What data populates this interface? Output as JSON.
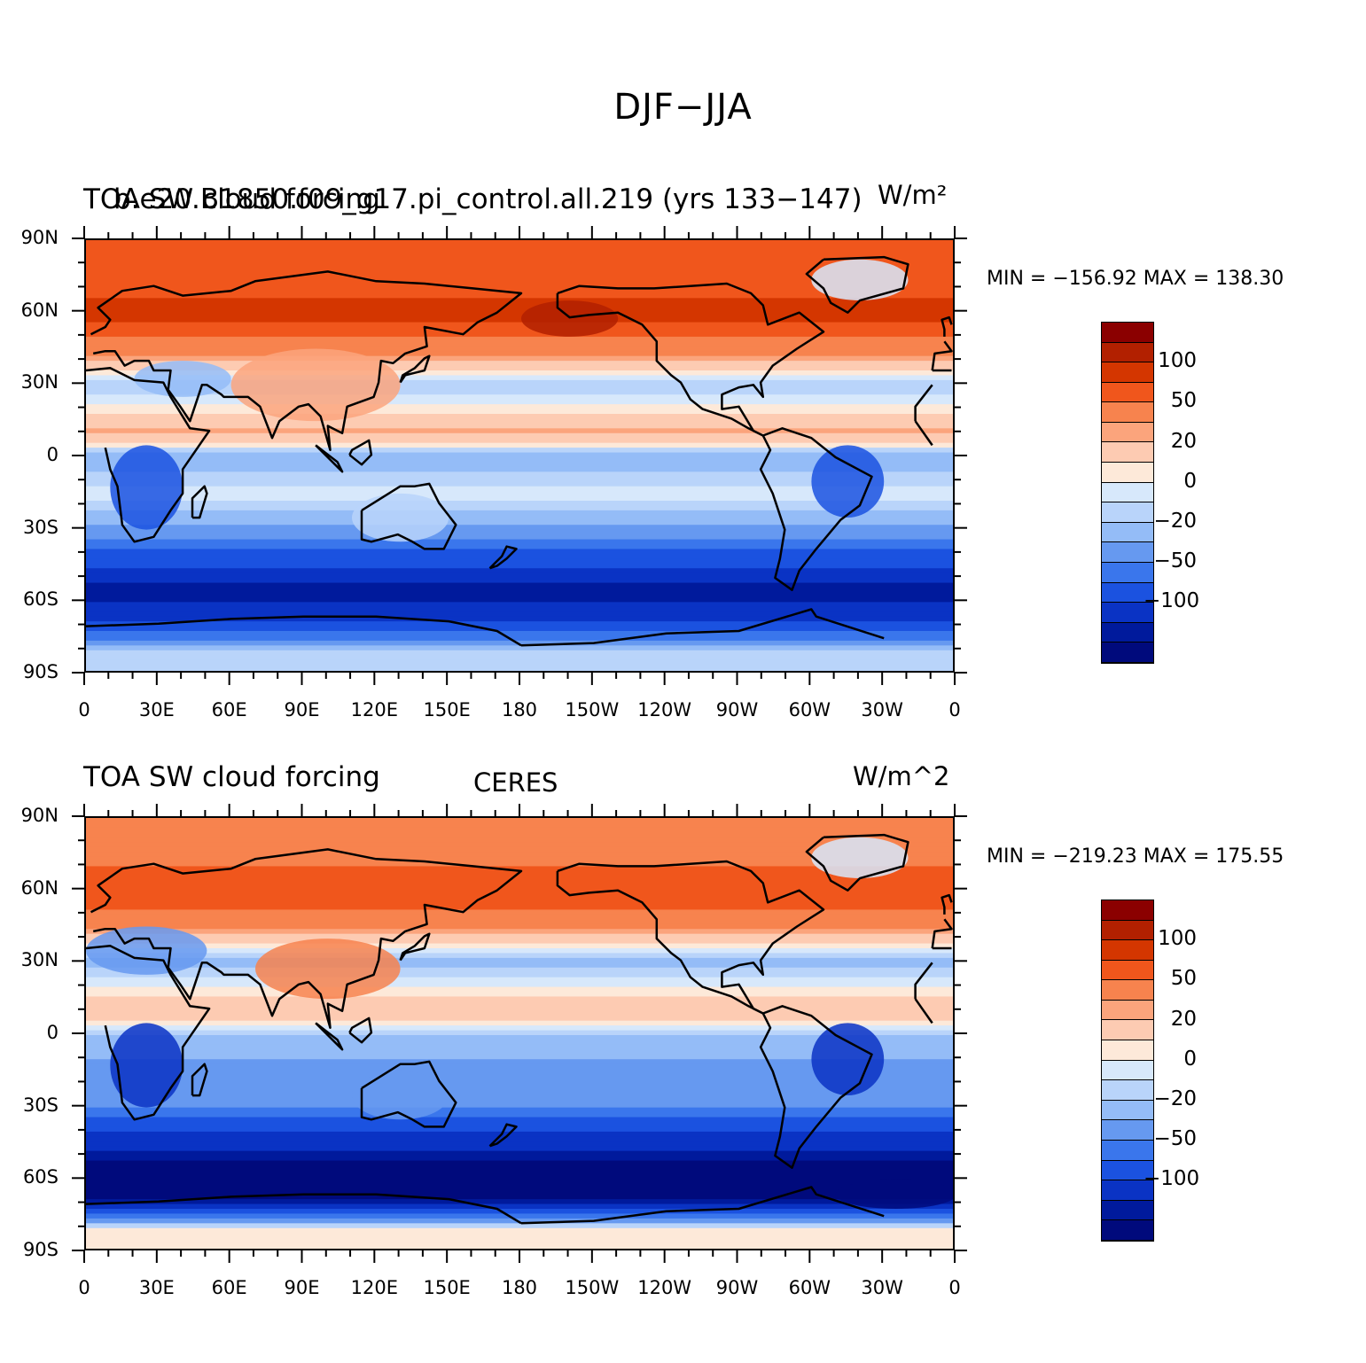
{
  "figure": {
    "title": "DJF−JJA"
  },
  "panels": [
    {
      "id": "model",
      "title_left": "TOA SW cloud forcing",
      "title_left_overlap": "b.e20.B1850.f09_g17.pi_control.all.219 (yrs 133−147)",
      "title_center": "",
      "units": "W/m²",
      "stats": "MIN = −156.92 MAX = 138.30"
    },
    {
      "id": "obs",
      "title_left": "TOA SW cloud forcing",
      "title_center": "CERES",
      "units": "W/m^2",
      "stats": "MIN = −219.23 MAX = 175.55"
    }
  ],
  "axes": {
    "lat_labels": [
      "90N",
      "60N",
      "30N",
      "0",
      "30S",
      "60S",
      "90S"
    ],
    "lon_labels": [
      "0",
      "30E",
      "60E",
      "90E",
      "120E",
      "150E",
      "180",
      "150W",
      "120W",
      "90W",
      "60W",
      "30W",
      "0"
    ]
  },
  "colorbar": {
    "colors": [
      "#8b0000",
      "#b22000",
      "#d43600",
      "#f0561c",
      "#f7834e",
      "#fba47c",
      "#fdcbb2",
      "#fde9d9",
      "#d7e8fb",
      "#b9d4fa",
      "#94bcf7",
      "#6699f0",
      "#3a76ec",
      "#1b52e0",
      "#0a33c4",
      "#001a9c",
      "#000a7c"
    ],
    "labels": [
      "100",
      "50",
      "20",
      "0",
      "−20",
      "−50",
      "−100"
    ]
  },
  "chart_data": [
    {
      "type": "heatmap",
      "title": "TOA SW cloud forcing — b.e20.B1850.f09_g17.pi_control.all.219 (yrs 133−147), DJF−JJA",
      "units": "W/m²",
      "x_range": [
        0,
        360
      ],
      "y_range": [
        -90,
        90
      ],
      "min": -156.92,
      "max": 138.3,
      "bands": [
        {
          "lat": 75,
          "value": 80
        },
        {
          "lat": 60,
          "value": 110
        },
        {
          "lat": 45,
          "value": 60
        },
        {
          "lat": 30,
          "value": -10
        },
        {
          "lat": 10,
          "value": 40
        },
        {
          "lat": 0,
          "value": -20
        },
        {
          "lat": -15,
          "value": 5
        },
        {
          "lat": -30,
          "value": -25
        },
        {
          "lat": -45,
          "value": -70
        },
        {
          "lat": -55,
          "value": -110
        },
        {
          "lat": -65,
          "value": -90
        },
        {
          "lat": -80,
          "value": -10
        }
      ]
    },
    {
      "type": "heatmap",
      "title": "TOA SW cloud forcing — CERES, DJF−JJA",
      "units": "W/m^2",
      "x_range": [
        0,
        360
      ],
      "y_range": [
        -90,
        90
      ],
      "min": -219.23,
      "max": 175.55,
      "bands": [
        {
          "lat": 75,
          "value": 60
        },
        {
          "lat": 60,
          "value": 100
        },
        {
          "lat": 45,
          "value": 50
        },
        {
          "lat": 30,
          "value": -15
        },
        {
          "lat": 10,
          "value": 35
        },
        {
          "lat": 0,
          "value": -10
        },
        {
          "lat": -15,
          "value": -25
        },
        {
          "lat": -30,
          "value": -35
        },
        {
          "lat": -45,
          "value": -90
        },
        {
          "lat": -55,
          "value": -130
        },
        {
          "lat": -65,
          "value": -160
        },
        {
          "lat": -80,
          "value": 10
        }
      ]
    }
  ]
}
